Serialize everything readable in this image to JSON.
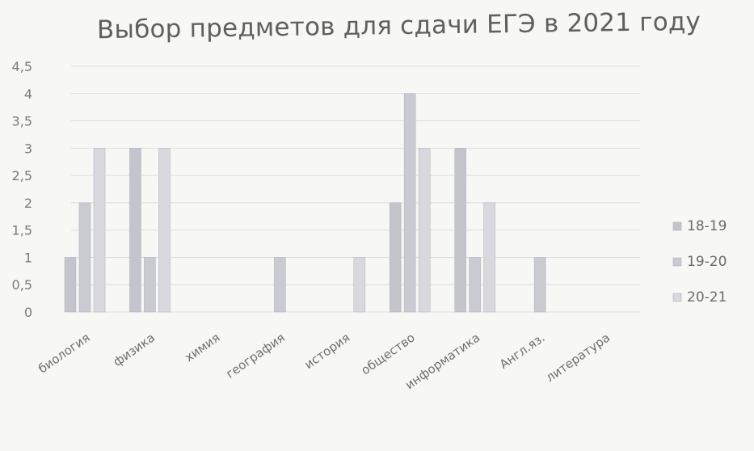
{
  "chart_data": {
    "type": "bar",
    "title": "Выбор предметов для сдачи ЕГЭ в 2021 году",
    "categories": [
      "биология",
      "физика",
      "химия",
      "география",
      "история",
      "общество",
      "информатика",
      "Англ.яз.",
      "литература"
    ],
    "series": [
      {
        "name": "18-19",
        "values": [
          1,
          3,
          0,
          0,
          0,
          2,
          3,
          0,
          0
        ],
        "color": "#c4c4cc"
      },
      {
        "name": "19-20",
        "values": [
          2,
          1,
          0,
          1,
          0,
          4,
          1,
          1,
          0
        ],
        "color": "#cacad2"
      },
      {
        "name": "20-21",
        "values": [
          3,
          3,
          0,
          0,
          1,
          3,
          2,
          0,
          0
        ],
        "color": "#d8d8de"
      }
    ],
    "y_ticks": [
      "0",
      "0,5",
      "1",
      "1,5",
      "2",
      "2,5",
      "3",
      "3,5",
      "4",
      "4,5"
    ],
    "ylim": [
      0,
      4.5
    ],
    "grid": true,
    "legend_position": "right"
  }
}
